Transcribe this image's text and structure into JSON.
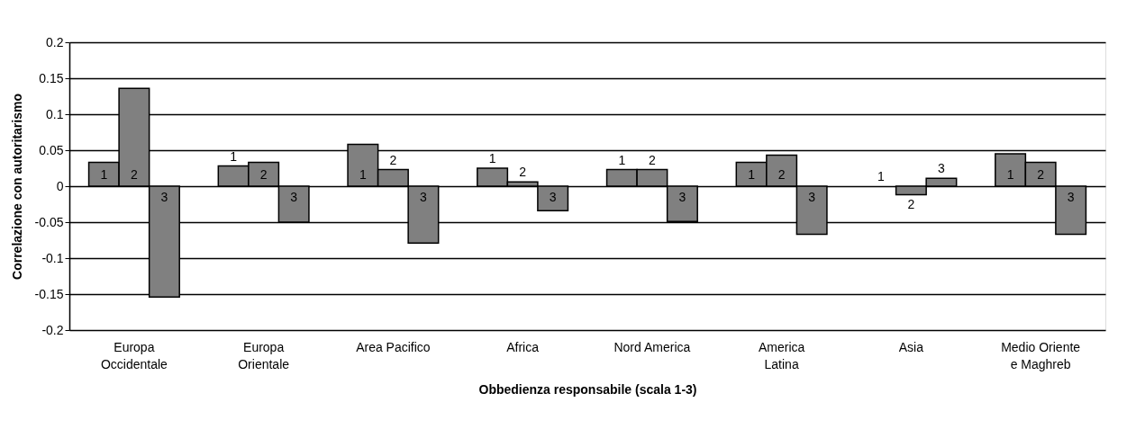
{
  "chart_data": {
    "type": "bar",
    "xlabel": "Obbedienza responsabile (scala 1-3)",
    "ylabel": "Correlazione con autoritarismo",
    "categories": [
      "Europa\nOccidentale",
      "Europa\nOrientale",
      "Area Pacifico",
      "Africa",
      "Nord America",
      "America\nLatina",
      "Asia",
      "Medio Oriente\ne Maghreb"
    ],
    "series": [
      {
        "name": "1",
        "color": "#808080",
        "values": [
          0.033,
          0.028,
          0.058,
          0.025,
          0.023,
          0.033,
          0,
          0.045
        ]
      },
      {
        "name": "2",
        "color": "#808080",
        "values": [
          0.136,
          0.033,
          0.023,
          0.006,
          0.023,
          0.043,
          -0.012,
          0.033
        ]
      },
      {
        "name": "3",
        "color": "#808080",
        "values": [
          -0.154,
          -0.05,
          -0.079,
          -0.034,
          -0.049,
          -0.067,
          0.011,
          -0.067
        ]
      }
    ],
    "ylim": [
      -0.2,
      0.2
    ],
    "yticks": [
      -0.2,
      -0.15,
      -0.1,
      -0.05,
      0,
      0.05,
      0.1,
      0.15,
      0.2
    ],
    "grid": "y",
    "legend": false
  }
}
